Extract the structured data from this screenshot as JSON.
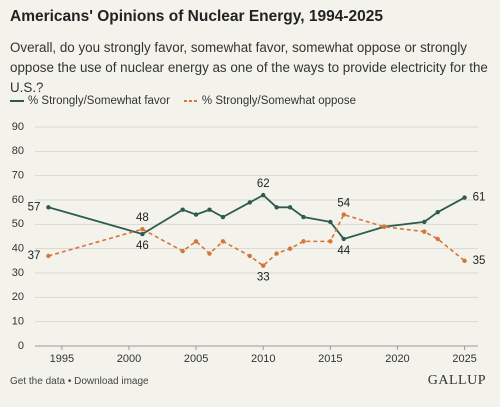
{
  "chart_data": {
    "type": "line",
    "title": "Americans' Opinions of Nuclear Energy, 1994-2025",
    "subtitle": "Overall, do you strongly favor, somewhat favor, somewhat oppose or strongly oppose the use of nuclear energy as one of the ways to provide electricity for the U.S.?",
    "x": [
      1994,
      2001,
      2004,
      2005,
      2006,
      2007,
      2009,
      2010,
      2011,
      2012,
      2013,
      2015,
      2016,
      2019,
      2022,
      2023,
      2025
    ],
    "series": [
      {
        "name": "% Strongly/Somewhat favor",
        "color": "#2d5b4f",
        "dashed": false,
        "values": [
          57,
          46,
          56,
          54,
          56,
          53,
          59,
          62,
          57,
          57,
          53,
          51,
          44,
          49,
          51,
          55,
          61
        ],
        "value_labels": [
          "57",
          "46",
          null,
          null,
          null,
          null,
          null,
          "62",
          null,
          null,
          null,
          null,
          "44",
          null,
          null,
          null,
          "61"
        ]
      },
      {
        "name": "% Strongly/Somewhat oppose",
        "color": "#d8733a",
        "dashed": true,
        "values": [
          37,
          48,
          39,
          43,
          38,
          43,
          37,
          33,
          38,
          40,
          43,
          43,
          54,
          49,
          47,
          44,
          35
        ],
        "value_labels": [
          "37",
          "48",
          null,
          null,
          null,
          null,
          null,
          "33",
          null,
          null,
          null,
          null,
          "54",
          null,
          null,
          null,
          "35"
        ]
      }
    ],
    "xlim": [
      1993,
      2026
    ],
    "xticks": [
      1995,
      2000,
      2005,
      2010,
      2015,
      2020,
      2025
    ],
    "ylim": [
      0,
      90
    ],
    "yticks": [
      0,
      10,
      20,
      30,
      40,
      50,
      60,
      70,
      80,
      90
    ],
    "grid": true,
    "links": [
      "Get the data",
      "Download image"
    ],
    "brand": "GALLUP"
  }
}
